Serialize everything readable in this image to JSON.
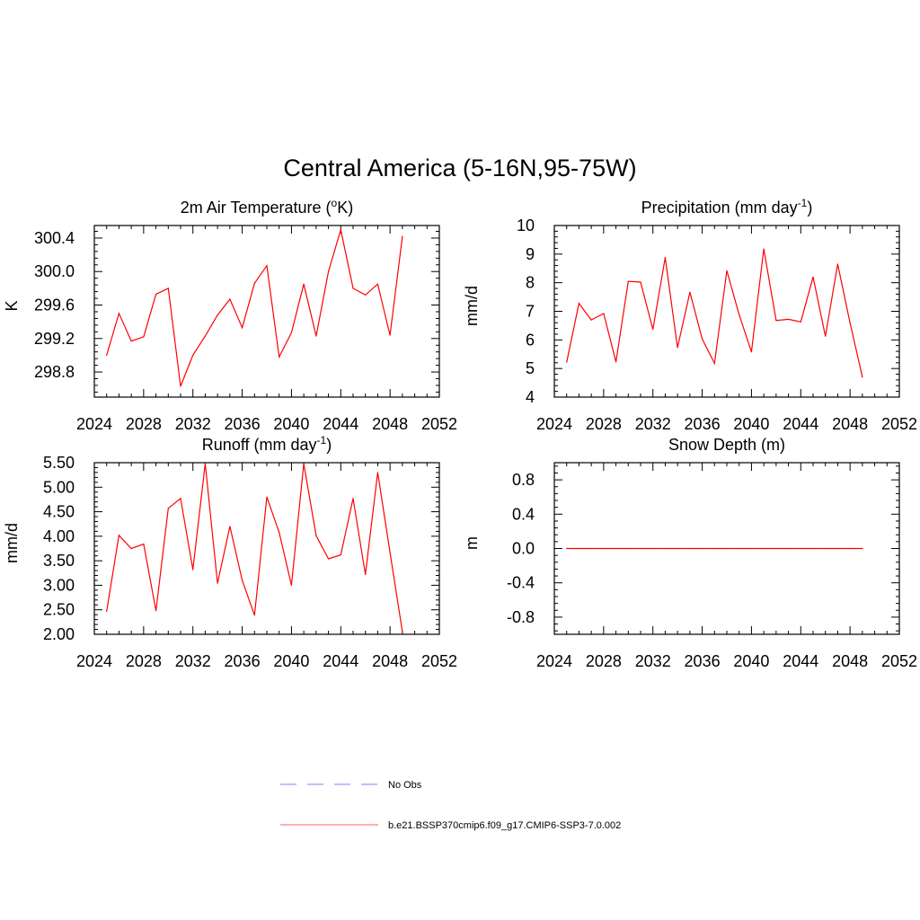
{
  "figure": {
    "title": "Central America (5-16N,95-75W)"
  },
  "legend": [
    {
      "label": "No Obs",
      "color": "#9999ff",
      "dashed": true
    },
    {
      "label": "b.e21.BSSP370cmip6.f09_g17.CMIP6-SSP3-7.0.002",
      "color": "#ff8080",
      "dashed": false
    }
  ],
  "chart_data": [
    {
      "type": "line",
      "title": "2m Air Temperature (°K)",
      "title_main": "2m Air Temperature (",
      "title_sup": "o",
      "title_tail": "K)",
      "ylabel": "K",
      "xlim": [
        2024,
        2052
      ],
      "ylim": [
        298.5,
        300.55
      ],
      "xticks": [
        2024,
        2028,
        2032,
        2036,
        2040,
        2044,
        2048,
        2052
      ],
      "yticks": [
        "298.8",
        "299.2",
        "299.6",
        "300.0",
        "300.4"
      ],
      "series": [
        {
          "color": "#ff0000",
          "x": [
            2025,
            2026,
            2027,
            2028,
            2029,
            2030,
            2031,
            2032,
            2033,
            2034,
            2035,
            2036,
            2037,
            2038,
            2039,
            2040,
            2041,
            2042,
            2043,
            2044,
            2045,
            2046,
            2047,
            2048,
            2049
          ],
          "values": [
            299.0,
            299.5,
            299.17,
            299.22,
            299.73,
            299.8,
            298.63,
            299.0,
            299.23,
            299.48,
            299.67,
            299.33,
            299.86,
            300.07,
            298.98,
            299.27,
            299.85,
            299.23,
            300.0,
            300.5,
            299.8,
            299.72,
            299.85,
            299.24,
            300.42
          ]
        }
      ]
    },
    {
      "type": "line",
      "title": "Precipitation (mm day-1)",
      "title_main": "Precipitation (mm day",
      "title_sup": "-1",
      "title_tail": ")",
      "ylabel": "mm/d",
      "xlim": [
        2024,
        2052
      ],
      "ylim": [
        4,
        10
      ],
      "xticks": [
        2024,
        2028,
        2032,
        2036,
        2040,
        2044,
        2048,
        2052
      ],
      "yticks": [
        "4",
        "5",
        "6",
        "7",
        "8",
        "9",
        "10"
      ],
      "series": [
        {
          "color": "#ff0000",
          "x": [
            2025,
            2026,
            2027,
            2028,
            2029,
            2030,
            2031,
            2032,
            2033,
            2034,
            2035,
            2036,
            2037,
            2038,
            2039,
            2040,
            2041,
            2042,
            2043,
            2044,
            2045,
            2046,
            2047,
            2048,
            2049
          ],
          "values": [
            5.22,
            7.28,
            6.7,
            6.92,
            5.23,
            8.05,
            8.02,
            6.37,
            8.88,
            5.73,
            7.67,
            6.03,
            5.18,
            8.42,
            6.88,
            5.58,
            9.18,
            6.68,
            6.72,
            6.63,
            8.2,
            6.13,
            8.65,
            6.6,
            4.7
          ]
        }
      ]
    },
    {
      "type": "line",
      "title": "Runoff (mm day-1)",
      "title_main": "Runoff (mm day",
      "title_sup": "-1",
      "title_tail": ")",
      "ylabel": "mm/d",
      "xlim": [
        2024,
        2052
      ],
      "ylim": [
        2.0,
        5.5
      ],
      "xticks": [
        2024,
        2028,
        2032,
        2036,
        2040,
        2044,
        2048,
        2052
      ],
      "yticks": [
        "2.00",
        "2.50",
        "3.00",
        "3.50",
        "4.00",
        "4.50",
        "5.00",
        "5.50"
      ],
      "series": [
        {
          "color": "#ff0000",
          "x": [
            2025,
            2026,
            2027,
            2028,
            2029,
            2030,
            2031,
            2032,
            2033,
            2034,
            2035,
            2036,
            2037,
            2038,
            2039,
            2040,
            2041,
            2042,
            2043,
            2044,
            2045,
            2046,
            2047,
            2048,
            2049
          ],
          "values": [
            2.47,
            4.02,
            3.75,
            3.84,
            2.48,
            4.57,
            4.77,
            3.32,
            5.48,
            3.04,
            4.2,
            3.1,
            2.39,
            4.8,
            4.08,
            3.0,
            5.48,
            4.01,
            3.54,
            3.62,
            4.77,
            3.22,
            5.3,
            3.67,
            2.05
          ]
        }
      ]
    },
    {
      "type": "line",
      "title": "Snow Depth (m)",
      "title_main": "Snow Depth (m)",
      "title_sup": "",
      "title_tail": "",
      "ylabel": "m",
      "xlim": [
        2024,
        2052
      ],
      "ylim": [
        -1.0,
        1.0
      ],
      "xticks": [
        2024,
        2028,
        2032,
        2036,
        2040,
        2044,
        2048,
        2052
      ],
      "yticks": [
        "-0.8",
        "-0.4",
        "0.0",
        "0.4",
        "0.8"
      ],
      "series": [
        {
          "color": "#ff0000",
          "x": [
            2025,
            2026,
            2027,
            2028,
            2029,
            2030,
            2031,
            2032,
            2033,
            2034,
            2035,
            2036,
            2037,
            2038,
            2039,
            2040,
            2041,
            2042,
            2043,
            2044,
            2045,
            2046,
            2047,
            2048,
            2049
          ],
          "values": [
            0,
            0,
            0,
            0,
            0,
            0,
            0,
            0,
            0,
            0,
            0,
            0,
            0,
            0,
            0,
            0,
            0,
            0,
            0,
            0,
            0,
            0,
            0,
            0,
            0
          ]
        }
      ]
    }
  ]
}
